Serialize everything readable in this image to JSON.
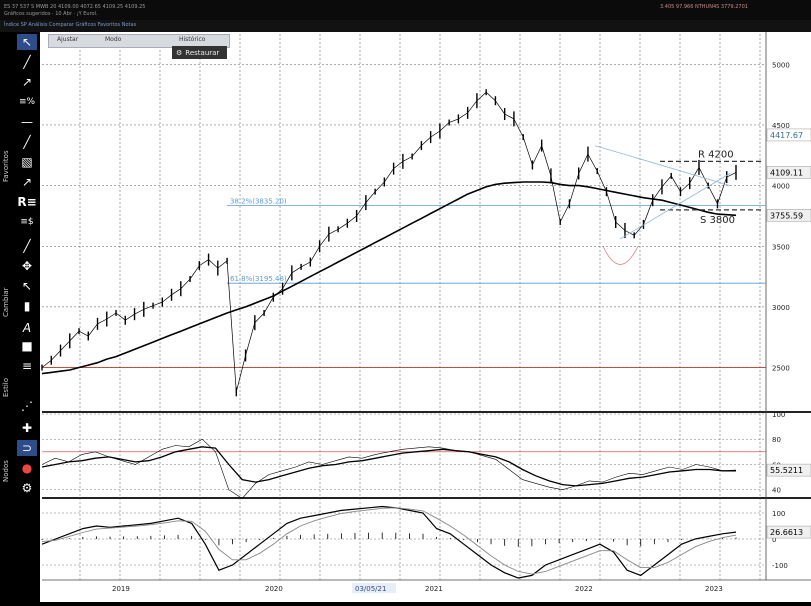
{
  "titlebar": {
    "left_text": "ES  37  537  S     MWB  20   4109.00     4072.65   4109.25     4109.25",
    "left_text_2": "Gráficos sugeridos  ·  10 Abr  ·  ¡Y Eurol.",
    "right_text": "3.405  97.966  NTHUN4S  3779.2701"
  },
  "toolbar2": {
    "text": "Índice SP  Análisis  Comparar  Gráficos  Favoritos  Notas"
  },
  "floating_toolbar": {
    "items": [
      "Ajustar",
      "Modo",
      "Histórico"
    ]
  },
  "restore_button": {
    "label": "Restaurar",
    "icon": "gear-icon"
  },
  "left_tools": {
    "vertical_labels": [
      "Favoritos",
      "Cambiar",
      "Estilo",
      "Nodos"
    ],
    "icons": [
      "cursor-arrow-icon",
      "line-icon",
      "trendline-icon",
      "fibonacci-icon",
      "horizontal-line-icon",
      "ray-icon",
      "channel-icon",
      "pen-icon",
      "resistance-icon",
      "price-label-icon",
      "brush-icon",
      "move-icon",
      "selection-icon",
      "trash-icon",
      "text-icon",
      "square-icon",
      "line-style-icon",
      "dotted-line-icon",
      "crosshair-icon",
      "magnet-icon",
      "color-dots-icon",
      "settings-icon"
    ]
  },
  "colors": {
    "price": "#000000",
    "ma200": "#000000",
    "fib": "#5b9bd5",
    "sma_red": "#c0392b",
    "accent_blue": "#2d4c8a",
    "resistance": "#333333",
    "neckline": "#8fb8d8"
  },
  "chart_data": [
    {
      "type": "line",
      "panel": "price",
      "ylim": [
        2150,
        5250
      ],
      "y_ticks": [
        2500,
        3000,
        3500,
        4000,
        4500,
        5000
      ],
      "x_labels": [
        "2019",
        "2020",
        "03/05/21",
        "2021",
        "2022",
        "2023"
      ],
      "price_labels": {
        "last": "4109.11",
        "high_marker": "4417.67",
        "support_marker": "3755.59"
      },
      "annotations": {
        "resistance": "R 4200",
        "support": "S 3800",
        "fib_38": "38.2%(3835.20)",
        "fib_61": "61.8%(3195.48)"
      },
      "series": [
        {
          "values": [
            2500,
            2560,
            2640,
            2720,
            2800,
            2760,
            2860,
            2900,
            2950,
            2890,
            2940,
            2980,
            3010,
            3040,
            3100,
            3150,
            3230,
            3340,
            3390,
            3320,
            3380,
            2300,
            2600,
            2870,
            2950,
            3080,
            3150,
            3280,
            3330,
            3370,
            3500,
            3600,
            3640,
            3690,
            3750,
            3860,
            3950,
            4030,
            4140,
            4200,
            4240,
            4330,
            4400,
            4450,
            4520,
            4550,
            4600,
            4700,
            4770,
            4700,
            4590,
            4550,
            4400,
            4170,
            4330,
            4080,
            3700,
            3850,
            4100,
            4260,
            4120,
            3950,
            3700,
            3630,
            3590,
            3680,
            3880,
            3990,
            4080,
            3950,
            4020,
            4150,
            4000,
            3850,
            4070,
            4109.11
          ]
        },
        {
          "name": "",
          "values": [
            2450,
            2460,
            2470,
            2480,
            2500,
            2520,
            2540,
            2570,
            2590,
            2620,
            2650,
            2680,
            2710,
            2740,
            2770,
            2800,
            2830,
            2860,
            2890,
            2920,
            2950,
            2975,
            3000,
            3030,
            3060,
            3090,
            3130,
            3170,
            3210,
            3250,
            3290,
            3330,
            3370,
            3410,
            3450,
            3490,
            3530,
            3570,
            3610,
            3650,
            3690,
            3730,
            3770,
            3810,
            3850,
            3890,
            3930,
            3960,
            3990,
            4010,
            4020,
            4025,
            4030,
            4030,
            4030,
            4025,
            4010,
            4000,
            4000,
            3990,
            3975,
            3960,
            3945,
            3930,
            3915,
            3900,
            3890,
            3880,
            3860,
            3840,
            3820,
            3800,
            3780,
            3765,
            3760,
            3755.59
          ]
        }
      ]
    },
    {
      "type": "line",
      "panel": "oscillator",
      "ylim": [
        35,
        100
      ],
      "y_ticks": [
        40,
        60,
        80,
        100
      ],
      "last_label": "55.5211",
      "series": [
        {
          "values": [
            60,
            65,
            62,
            68,
            70,
            66,
            63,
            60,
            66,
            72,
            75,
            74,
            80,
            70,
            40,
            33,
            45,
            52,
            55,
            58,
            62,
            60,
            63,
            66,
            65,
            68,
            70,
            72,
            73,
            74,
            73,
            71,
            70,
            67,
            64,
            56,
            48,
            45,
            42,
            40,
            43,
            47,
            46,
            50,
            53,
            52,
            55,
            58,
            56,
            60,
            58,
            55,
            55.5211
          ]
        },
        {
          "values": [
            58,
            60,
            62,
            63,
            65,
            66,
            64,
            62,
            63,
            66,
            70,
            72,
            74,
            73,
            60,
            48,
            46,
            48,
            51,
            54,
            57,
            59,
            60,
            62,
            63,
            65,
            67,
            69,
            70,
            71,
            72,
            71,
            70,
            68,
            66,
            62,
            56,
            51,
            47,
            44,
            43,
            44,
            45,
            47,
            49,
            50,
            52,
            54,
            55,
            56,
            56,
            55,
            55
          ]
        }
      ]
    },
    {
      "type": "line",
      "panel": "macd",
      "ylim": [
        -150,
        150
      ],
      "y_ticks": [
        -100,
        0,
        100
      ],
      "last_label": "26.6613",
      "series": [
        {
          "values": [
            -20,
            0,
            20,
            40,
            50,
            45,
            50,
            55,
            60,
            70,
            80,
            60,
            -20,
            -120,
            -100,
            -60,
            -20,
            20,
            60,
            80,
            90,
            100,
            110,
            115,
            120,
            125,
            120,
            110,
            100,
            40,
            20,
            -20,
            -60,
            -100,
            -130,
            -150,
            -140,
            -100,
            -80,
            -60,
            -40,
            -20,
            -50,
            -120,
            -140,
            -100,
            -60,
            -20,
            0,
            10,
            20,
            26.6613
          ]
        },
        {
          "values": [
            -10,
            -5,
            10,
            25,
            38,
            42,
            46,
            50,
            55,
            62,
            70,
            68,
            30,
            -40,
            -80,
            -80,
            -55,
            -20,
            20,
            50,
            70,
            85,
            98,
            106,
            112,
            118,
            120,
            115,
            108,
            80,
            50,
            15,
            -25,
            -65,
            -100,
            -125,
            -135,
            -125,
            -105,
            -85,
            -65,
            -45,
            -45,
            -80,
            -110,
            -110,
            -90,
            -60,
            -30,
            -10,
            5,
            15
          ]
        }
      ]
    }
  ]
}
